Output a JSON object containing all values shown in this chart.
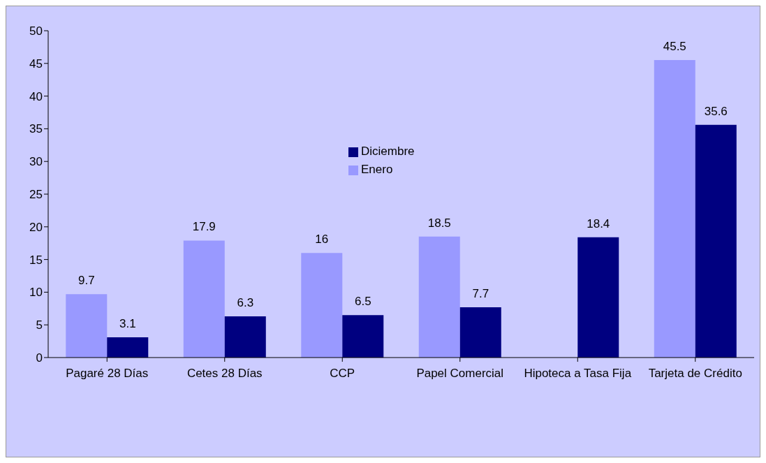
{
  "chart_data": {
    "type": "bar",
    "categories": [
      "Pagaré 28 Días",
      "Cetes 28 Días",
      "CCP",
      "Papel Comercial",
      "Hipoteca a Tasa Fija",
      "Tarjeta de Crédito"
    ],
    "series": [
      {
        "name": "Enero",
        "color": "#9999ff",
        "values": [
          9.7,
          17.9,
          16,
          18.5,
          null,
          45.5
        ]
      },
      {
        "name": "Diciembre",
        "color": "#000080",
        "values": [
          3.1,
          6.3,
          6.5,
          7.7,
          18.4,
          35.6
        ]
      }
    ],
    "ylim": [
      0,
      50
    ],
    "yticks": [
      0,
      5,
      10,
      15,
      20,
      25,
      30,
      35,
      40,
      45,
      50
    ],
    "grid": false,
    "legend": "top",
    "data_labels": true
  }
}
